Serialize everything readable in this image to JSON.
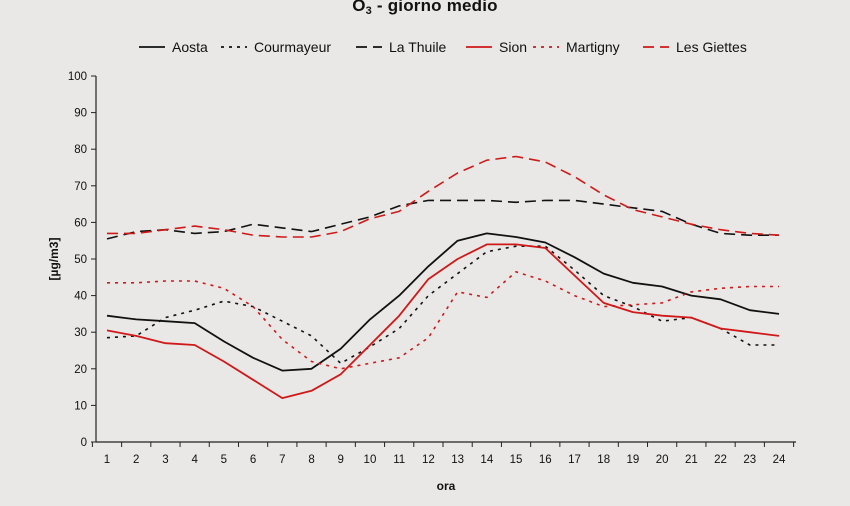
{
  "chart_data": {
    "type": "line",
    "title_main": "O",
    "title_sub": "3",
    "title_rest": " - giorno medio",
    "xlabel": "ora",
    "ylabel": "[µg/m3]",
    "x": [
      1,
      2,
      3,
      4,
      5,
      6,
      7,
      8,
      9,
      10,
      11,
      12,
      13,
      14,
      15,
      16,
      17,
      18,
      19,
      20,
      21,
      22,
      23,
      24
    ],
    "ylim": [
      0,
      100
    ],
    "yticks": [
      0,
      10,
      20,
      30,
      40,
      50,
      60,
      70,
      80,
      90,
      100
    ],
    "grid": false,
    "legend_position": "top",
    "series": [
      {
        "name": "Aosta",
        "color": "#111111",
        "dash": "solid",
        "values": [
          34.5,
          33.5,
          33,
          32.5,
          27.5,
          23,
          19.5,
          20,
          25.5,
          33.5,
          40,
          48,
          55,
          57,
          56,
          54.5,
          50.5,
          46,
          43.5,
          42.5,
          40,
          39,
          36,
          35
        ]
      },
      {
        "name": "Courmayeur",
        "color": "#111111",
        "dash": "dotted",
        "values": [
          28.5,
          29,
          34,
          36,
          38.5,
          37,
          33,
          29,
          21.5,
          26,
          31,
          40,
          46,
          52,
          53.5,
          53.5,
          47,
          40,
          37,
          33,
          34,
          31,
          26.5,
          26.5
        ]
      },
      {
        "name": "La Thuile",
        "color": "#111111",
        "dash": "dashed",
        "values": [
          55.5,
          57.5,
          58,
          57,
          57.5,
          59.5,
          58.5,
          57.5,
          59.5,
          61.5,
          64.5,
          66,
          66,
          66,
          65.5,
          66,
          66,
          65,
          64,
          63,
          59.5,
          57,
          56.5,
          56.5
        ]
      },
      {
        "name": "Sion",
        "color": "#d01818",
        "dash": "solid",
        "values": [
          30.5,
          29,
          27,
          26.5,
          22,
          17,
          12,
          14,
          18.5,
          26.5,
          34.5,
          44.5,
          50,
          54,
          54,
          53,
          45.5,
          38,
          35.5,
          34.5,
          34,
          31,
          30,
          29
        ]
      },
      {
        "name": "Martigny",
        "color": "#d01818",
        "dash": "dotted",
        "values": [
          43.5,
          43.5,
          44,
          44,
          42,
          37,
          28,
          22,
          20,
          21.5,
          23,
          28.5,
          41,
          39.5,
          46.5,
          44,
          40,
          37,
          37.5,
          38,
          41,
          42,
          42.5,
          42.5
        ]
      },
      {
        "name": "Les Giettes",
        "color": "#d01818",
        "dash": "dashed",
        "values": [
          57,
          57,
          58,
          59,
          58,
          56.5,
          56,
          56,
          57.5,
          61,
          63,
          68.5,
          73.5,
          77,
          78,
          76.5,
          72.5,
          67.5,
          63.5,
          61.5,
          59.5,
          58,
          57,
          56.5
        ]
      }
    ]
  }
}
